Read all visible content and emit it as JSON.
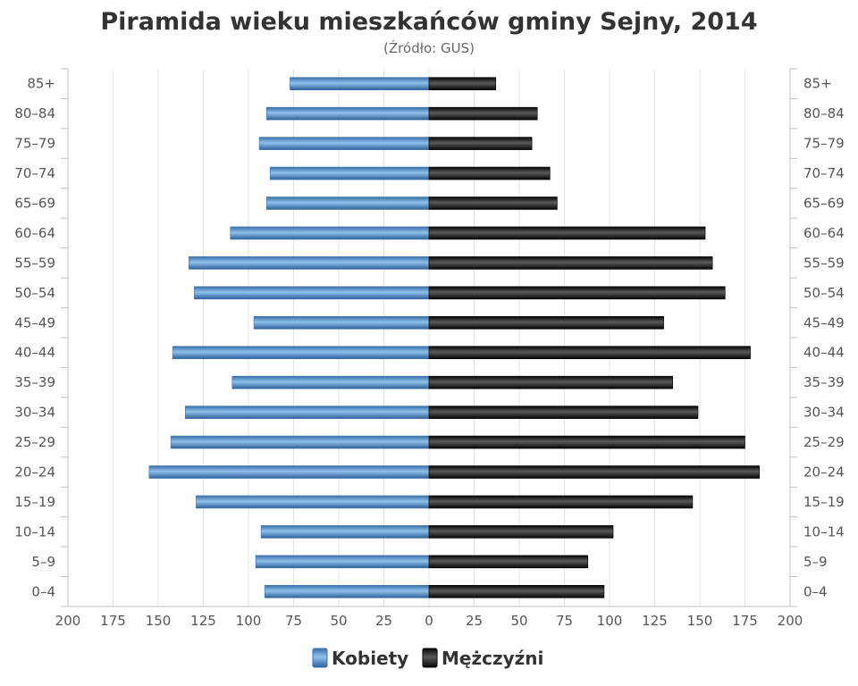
{
  "chart_data": {
    "type": "bar",
    "orientation": "horizontal",
    "subtype": "population-pyramid",
    "title": "Piramida wieku mieszkańców gminy Sejny, 2014",
    "subtitle": "(Źródło: GUS)",
    "categories": [
      "85+",
      "80–84",
      "75–79",
      "70–74",
      "65–69",
      "60–64",
      "55–59",
      "50–54",
      "45–49",
      "40–44",
      "35–39",
      "30–34",
      "25–29",
      "20–24",
      "15–19",
      "10–14",
      "5–9",
      "0–4"
    ],
    "series": [
      {
        "name": "Kobiety",
        "side": "left",
        "color": "#4a86c8",
        "values": [
          77,
          90,
          94,
          88,
          90,
          110,
          133,
          130,
          97,
          142,
          109,
          135,
          143,
          155,
          129,
          93,
          96,
          91
        ]
      },
      {
        "name": "Mężczyźni",
        "side": "right",
        "color": "#1c1c1c",
        "values": [
          37,
          60,
          57,
          67,
          71,
          153,
          157,
          164,
          130,
          178,
          135,
          149,
          175,
          183,
          146,
          102,
          88,
          97
        ]
      }
    ],
    "xlim": [
      -200,
      200
    ],
    "x_ticks": [
      "200",
      "175",
      "150",
      "125",
      "100",
      "75",
      "50",
      "25",
      "0",
      "25",
      "50",
      "75",
      "100",
      "125",
      "150",
      "175",
      "200"
    ],
    "grid": true,
    "legend_position": "bottom-center"
  }
}
